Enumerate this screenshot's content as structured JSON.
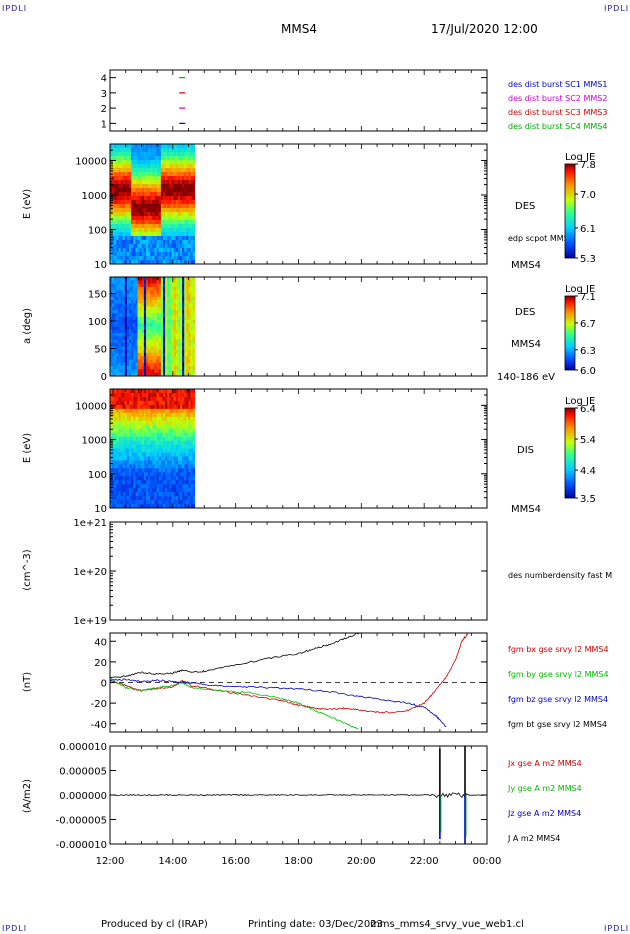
{
  "header": {
    "corner_logo": "IPDLI",
    "spacecraft": "MMS4",
    "datetime": "17/Jul/2020 12:00"
  },
  "footer": {
    "produced_by": "Produced by cl (IRAP)",
    "printing_date": "Printing date: 03/Dec/2023",
    "filename": "mms_mms4_srvy_vue_web1.cl"
  },
  "colors": {
    "mms1": "#0000cc",
    "mms2": "#cc00cc",
    "mms3": "#cc0000",
    "mms4": "#00aa00",
    "bx": "#cc0000",
    "by": "#00bb00",
    "bz": "#0000bb",
    "bt": "#000000"
  },
  "time_axis": {
    "ticks": [
      "12:00",
      "14:00",
      "16:00",
      "18:00",
      "20:00",
      "22:00",
      "00:00"
    ],
    "start_hour": 12,
    "end_hour": 24
  },
  "chart_data": [
    {
      "type": "scatter",
      "panel": "burst_availability",
      "ytick_labels": [
        "4",
        "3",
        "2",
        "1"
      ],
      "ylim": [
        0.5,
        4.5
      ],
      "series": [
        {
          "name": "des dist burst SC1 MMS1",
          "sc": 1,
          "x": [
            14.3
          ],
          "color": "#0000cc"
        },
        {
          "name": "des dist burst SC2 MMS2",
          "sc": 2,
          "x": [
            14.3
          ],
          "color": "#cc00cc"
        },
        {
          "name": "des dist burst SC3 MMS3",
          "sc": 3,
          "x": [
            14.3
          ],
          "color": "#cc0000"
        },
        {
          "name": "des dist burst SC4 MMS4",
          "sc": 4,
          "x": [
            14.3
          ],
          "color": "#00aa00"
        }
      ]
    },
    {
      "type": "heatmap",
      "panel": "des_energy",
      "ylabel": "E (eV)",
      "yscale": "log",
      "ylim": [
        10,
        30000
      ],
      "ytick_labels": [
        "10000",
        "1000",
        "100",
        "10"
      ],
      "data_x_range": [
        12.0,
        14.7
      ],
      "instrument": "DES",
      "side_label": "edp scpot MMS4",
      "side_label2": "MMS4",
      "colorbar": {
        "title": "Log JE",
        "ticks": [
          "7.8",
          "7.0",
          "6.1",
          "5.3"
        ],
        "range": [
          5.3,
          7.8
        ]
      }
    },
    {
      "type": "heatmap",
      "panel": "des_pitch_angle",
      "ylabel": "a (deg)",
      "ylim": [
        0,
        180
      ],
      "ytick_labels": [
        "150",
        "100",
        "50",
        "0"
      ],
      "data_x_range": [
        12.0,
        14.7
      ],
      "instrument": "DES",
      "side_label": "MMS4",
      "energy_range": "140-186 eV",
      "colorbar": {
        "title": "Log JE",
        "ticks": [
          "7.1",
          "6.7",
          "6.3",
          "6.0"
        ],
        "range": [
          6.0,
          7.1
        ]
      }
    },
    {
      "type": "heatmap",
      "panel": "dis_energy",
      "ylabel": "E (eV)",
      "yscale": "log",
      "ylim": [
        10,
        30000
      ],
      "ytick_labels": [
        "10000",
        "1000",
        "100",
        "10"
      ],
      "data_x_range": [
        12.0,
        14.7
      ],
      "instrument": "DIS",
      "side_label": "MMS4",
      "colorbar": {
        "title": "Log JE",
        "ticks": [
          "6.4",
          "5.4",
          "4.4",
          "3.5"
        ],
        "range": [
          3.5,
          6.4
        ]
      }
    },
    {
      "type": "line",
      "panel": "density",
      "ylabel": "(cm^-3)",
      "yscale": "log",
      "ytick_labels": [
        "1e+21",
        "1e+20",
        "1e+19"
      ],
      "series": [
        {
          "name": "des numberdensity fast M",
          "x": [],
          "y": []
        }
      ]
    },
    {
      "type": "line",
      "panel": "fgm",
      "ylabel": "(nT)",
      "ylim": [
        -48,
        48
      ],
      "ytick_labels": [
        "40",
        "20",
        "0",
        "-20",
        "-40"
      ],
      "series": [
        {
          "name": "fgm bx gse srvy l2 MMS4",
          "color": "#cc0000",
          "x": [
            12.0,
            12.5,
            13.0,
            13.5,
            14.0,
            14.3,
            14.6,
            15.5,
            16.5,
            17.5,
            18.0,
            18.5,
            19.0,
            19.5,
            20.0,
            20.5,
            21.0,
            21.5,
            22.0,
            22.3,
            22.7,
            23.0,
            23.2,
            23.4
          ],
          "y": [
            2,
            -3,
            -8,
            -6,
            -4,
            2,
            -3,
            -8,
            -13,
            -18,
            -22,
            -25,
            -26,
            -25,
            -27,
            -29,
            -29,
            -27,
            -20,
            -10,
            5,
            22,
            40,
            48
          ]
        },
        {
          "name": "fgm by gse srvy l2 MMS4",
          "color": "#00bb00",
          "x": [
            12.0,
            12.5,
            13.0,
            13.5,
            14.0,
            14.3,
            14.6,
            15.5,
            16.5,
            17.5,
            18.0,
            18.5,
            19.0,
            19.5,
            19.9
          ],
          "y": [
            4,
            -5,
            -8,
            -5,
            -3,
            0,
            -5,
            -8,
            -10,
            -16,
            -20,
            -27,
            -33,
            -40,
            -45
          ]
        },
        {
          "name": "fgm bz gse srvy l2 MMS4",
          "color": "#0000bb",
          "x": [
            12.0,
            12.5,
            13.0,
            13.5,
            14.0,
            14.5,
            15.0,
            16.0,
            17.0,
            18.0,
            19.0,
            20.0,
            21.0,
            21.5,
            22.0,
            22.4,
            22.7
          ],
          "y": [
            2,
            3,
            1,
            2,
            1,
            0,
            -2,
            -4,
            -5,
            -6,
            -9,
            -14,
            -18,
            -20,
            -24,
            -33,
            -43
          ]
        },
        {
          "name": "fgm bt gse srvy l2 MMS4",
          "color": "#000000",
          "x": [
            12.0,
            12.5,
            13.0,
            13.5,
            14.0,
            14.3,
            14.6,
            15.0,
            16.0,
            17.0,
            18.0,
            18.5,
            19.0,
            19.5,
            20.0
          ],
          "y": [
            5,
            6,
            10,
            8,
            9,
            12,
            10,
            11,
            17,
            23,
            28,
            33,
            37,
            43,
            49
          ]
        }
      ]
    },
    {
      "type": "line",
      "panel": "current",
      "ylabel": "(A/m2)",
      "ylim": [
        -1e-05,
        1e-05
      ],
      "ytick_labels": [
        "0.000010",
        "0.000005",
        "0.000000",
        "-0.000005",
        "-0.000010"
      ],
      "series": [
        {
          "name": "Jx gse A m2 MMS4",
          "color": "#cc0000"
        },
        {
          "name": "Jy gse A m2 MMS4",
          "color": "#00bb00"
        },
        {
          "name": "Jz gse A m2 MMS4",
          "color": "#0000bb"
        },
        {
          "name": "J A m2 MMS4",
          "color": "#000000"
        }
      ],
      "spikes": [
        {
          "x": 22.5,
          "y_max": 9.5e-06,
          "y_min": -9e-06
        },
        {
          "x": 23.3,
          "y_max": 1e-05,
          "y_min": -1e-05
        }
      ]
    }
  ]
}
